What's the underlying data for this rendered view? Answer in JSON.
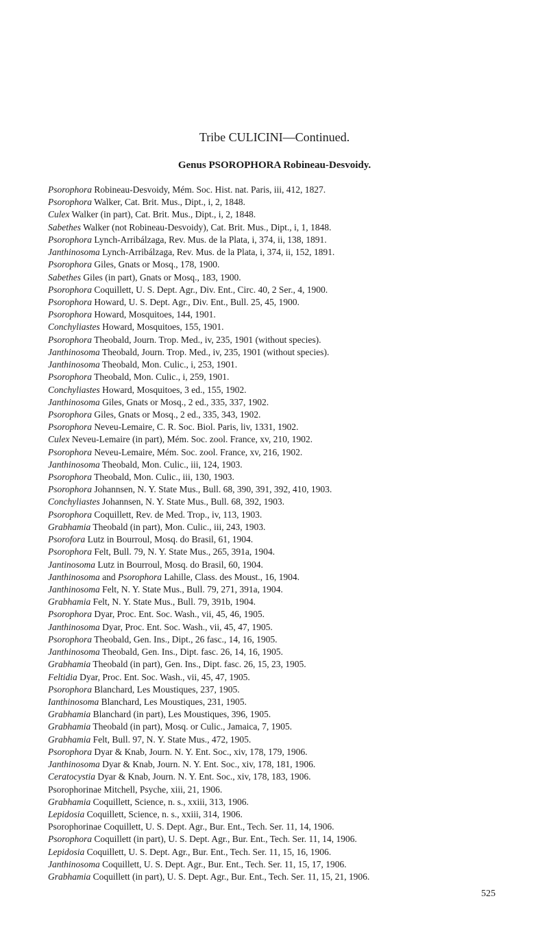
{
  "title": "Tribe CULICINI—Continued.",
  "subtitle": "Genus PSOROPHORA Robineau-Desvoidy.",
  "entries": [
    {
      "genus": "Psorophora",
      "rest": " Robineau-Desvoidy, Mém. Soc. Hist. nat. Paris, iii, 412, 1827."
    },
    {
      "genus": "Psorophora",
      "rest": " Walker, Cat. Brit. Mus., Dipt., i, 2, 1848."
    },
    {
      "genus": "Culex",
      "rest": " Walker (in part), Cat. Brit. Mus., Dipt., i, 2, 1848."
    },
    {
      "genus": "Sabethes",
      "rest": " Walker (not Robineau-Desvoidy), Cat. Brit. Mus., Dipt., i, 1, 1848."
    },
    {
      "genus": "Psorophora",
      "rest": " Lynch-Arribálzaga, Rev. Mus. de la Plata, i, 374, ii, 138, 1891."
    },
    {
      "genus": "Janthinosoma",
      "rest": " Lynch-Arribálzaga, Rev. Mus. de la Plata, i, 374, ii, 152, 1891."
    },
    {
      "genus": "Psorophora",
      "rest": " Giles, Gnats or Mosq., 178, 1900."
    },
    {
      "genus": "Sabethes",
      "rest": " Giles (in part), Gnats or Mosq., 183, 1900."
    },
    {
      "genus": "Psorophora",
      "rest": " Coquillett, U. S. Dept. Agr., Div. Ent., Circ. 40, 2 Ser., 4, 1900."
    },
    {
      "genus": "Psorophora",
      "rest": " Howard, U. S. Dept. Agr., Div. Ent., Bull. 25, 45, 1900."
    },
    {
      "genus": "Psorophora",
      "rest": " Howard, Mosquitoes, 144, 1901."
    },
    {
      "genus": "Conchyliastes",
      "rest": " Howard, Mosquitoes, 155, 1901."
    },
    {
      "genus": "Psorophora",
      "rest": " Theobald, Journ. Trop. Med., iv, 235, 1901 (without species)."
    },
    {
      "genus": "Janthinosoma",
      "rest": " Theobald, Journ. Trop. Med., iv, 235, 1901 (without species)."
    },
    {
      "genus": "Janthinosoma",
      "rest": " Theobald, Mon. Culic., i, 253, 1901."
    },
    {
      "genus": "Psorophora",
      "rest": " Theobald, Mon. Culic., i, 259, 1901."
    },
    {
      "genus": "Conchyliastes",
      "rest": " Howard, Mosquitoes, 3 ed., 155, 1902."
    },
    {
      "genus": "Janthinosoma",
      "rest": " Giles, Gnats or Mosq., 2 ed., 335, 337, 1902."
    },
    {
      "genus": "Psorophora",
      "rest": " Giles, Gnats or Mosq., 2 ed., 335, 343, 1902."
    },
    {
      "genus": "Psorophora",
      "rest": " Neveu-Lemaire, C. R. Soc. Biol. Paris, liv, 1331, 1902."
    },
    {
      "genus": "Culex",
      "rest": " Neveu-Lemaire (in part), Mém. Soc. zool. France, xv, 210, 1902."
    },
    {
      "genus": "Psorophora",
      "rest": " Neveu-Lemaire, Mém. Soc. zool. France, xv, 216, 1902."
    },
    {
      "genus": "Janthinosoma",
      "rest": " Theobald, Mon. Culic., iii, 124, 1903."
    },
    {
      "genus": "Psorophora",
      "rest": " Theobald, Mon. Culic., iii, 130, 1903."
    },
    {
      "genus": "Psorophora",
      "rest": " Johannsen, N. Y. State Mus., Bull. 68, 390, 391, 392, 410, 1903."
    },
    {
      "genus": "Conchyliastes",
      "rest": " Johannsen, N. Y. State Mus., Bull. 68, 392, 1903."
    },
    {
      "genus": "Psorophora",
      "rest": " Coquillett, Rev. de Med. Trop., iv, 113, 1903."
    },
    {
      "genus": "Grabhamia",
      "rest": " Theobald (in part), Mon. Culic., iii, 243, 1903."
    },
    {
      "genus": "Psorofora",
      "rest": " Lutz in Bourroul, Mosq. do Brasil, 61, 1904."
    },
    {
      "genus": "Psorophora",
      "rest": " Felt, Bull. 79, N. Y. State Mus., 265, 391a, 1904."
    },
    {
      "genus": "Jantinosoma",
      "rest": " Lutz in Bourroul, Mosq. do Brasil, 60, 1904."
    },
    {
      "genus": "Janthinosoma",
      "rest": " and ",
      "genus2": "Psorophora",
      "rest2": " Lahille, Class. des Moust., 16, 1904."
    },
    {
      "genus": "Janthinosoma",
      "rest": " Felt, N. Y. State Mus., Bull. 79, 271, 391a, 1904."
    },
    {
      "genus": "Grabhamia",
      "rest": " Felt, N. Y. State Mus., Bull. 79, 391b, 1904."
    },
    {
      "genus": "Psorophora",
      "rest": " Dyar, Proc. Ent. Soc. Wash., vii, 45, 46, 1905."
    },
    {
      "genus": "Janthinosoma",
      "rest": " Dyar, Proc. Ent. Soc. Wash., vii, 45, 47, 1905."
    },
    {
      "genus": "Psorophora",
      "rest": " Theobald, Gen. Ins., Dipt., 26 fasc., 14, 16, 1905."
    },
    {
      "genus": "Janthinosoma",
      "rest": " Theobald, Gen. Ins., Dipt. fasc. 26, 14, 16, 1905."
    },
    {
      "genus": "Grabhamia",
      "rest": " Theobald (in part), Gen. Ins., Dipt. fasc. 26, 15, 23, 1905."
    },
    {
      "genus": "Feltidia",
      "rest": " Dyar, Proc. Ent. Soc. Wash., vii, 45, 47, 1905."
    },
    {
      "genus": "Psorophora",
      "rest": " Blanchard, Les Moustiques, 237, 1905."
    },
    {
      "genus": "Ianthinosoma",
      "rest": " Blanchard, Les Moustiques, 231, 1905."
    },
    {
      "genus": "Grabhamia",
      "rest": " Blanchard (in part), Les Moustiques, 396, 1905."
    },
    {
      "genus": "Grabhamia",
      "rest": " Theobald (in part), Mosq. or Culic., Jamaica, 7, 1905."
    },
    {
      "genus": "Grabhamia",
      "rest": " Felt, Bull. 97, N. Y. State Mus., 472, 1905."
    },
    {
      "genus": "Psorophora",
      "rest": " Dyar & Knab, Journ. N. Y. Ent. Soc., xiv, 178, 179, 1906."
    },
    {
      "genus": "Janthinosoma",
      "rest": " Dyar & Knab, Journ. N. Y. Ent. Soc., xiv, 178, 181, 1906."
    },
    {
      "genus": "Ceratocystia",
      "rest": " Dyar & Knab, Journ. N. Y. Ent. Soc., xiv, 178, 183, 1906."
    },
    {
      "genus": "",
      "rest": "Psorophorinae Mitchell, Psyche, xiii, 21, 1906."
    },
    {
      "genus": "Grabhamia",
      "rest": " Coquillett, Science, n. s., xxiii, 313, 1906."
    },
    {
      "genus": "Lepidosia",
      "rest": " Coquillett, Science, n. s., xxiii, 314, 1906."
    },
    {
      "genus": "",
      "rest": "Psorophorinae Coquillett, U. S. Dept. Agr., Bur. Ent., Tech. Ser. 11, 14, 1906."
    },
    {
      "genus": "Psorophora",
      "rest": " Coquillett (in part), U. S. Dept. Agr., Bur. Ent., Tech. Ser. 11, 14, 1906."
    },
    {
      "genus": "Lepidosia",
      "rest": " Coquillett, U. S. Dept. Agr., Bur. Ent., Tech. Ser. 11, 15, 16, 1906."
    },
    {
      "genus": "Janthinosoma",
      "rest": " Coquillett, U. S. Dept. Agr., Bur. Ent., Tech. Ser. 11, 15, 17, 1906."
    },
    {
      "genus": "Grabhamia",
      "rest": " Coquillett (in part), U. S. Dept. Agr., Bur. Ent., Tech. Ser. 11, 15, 21, 1906."
    }
  ],
  "page_number": "525"
}
